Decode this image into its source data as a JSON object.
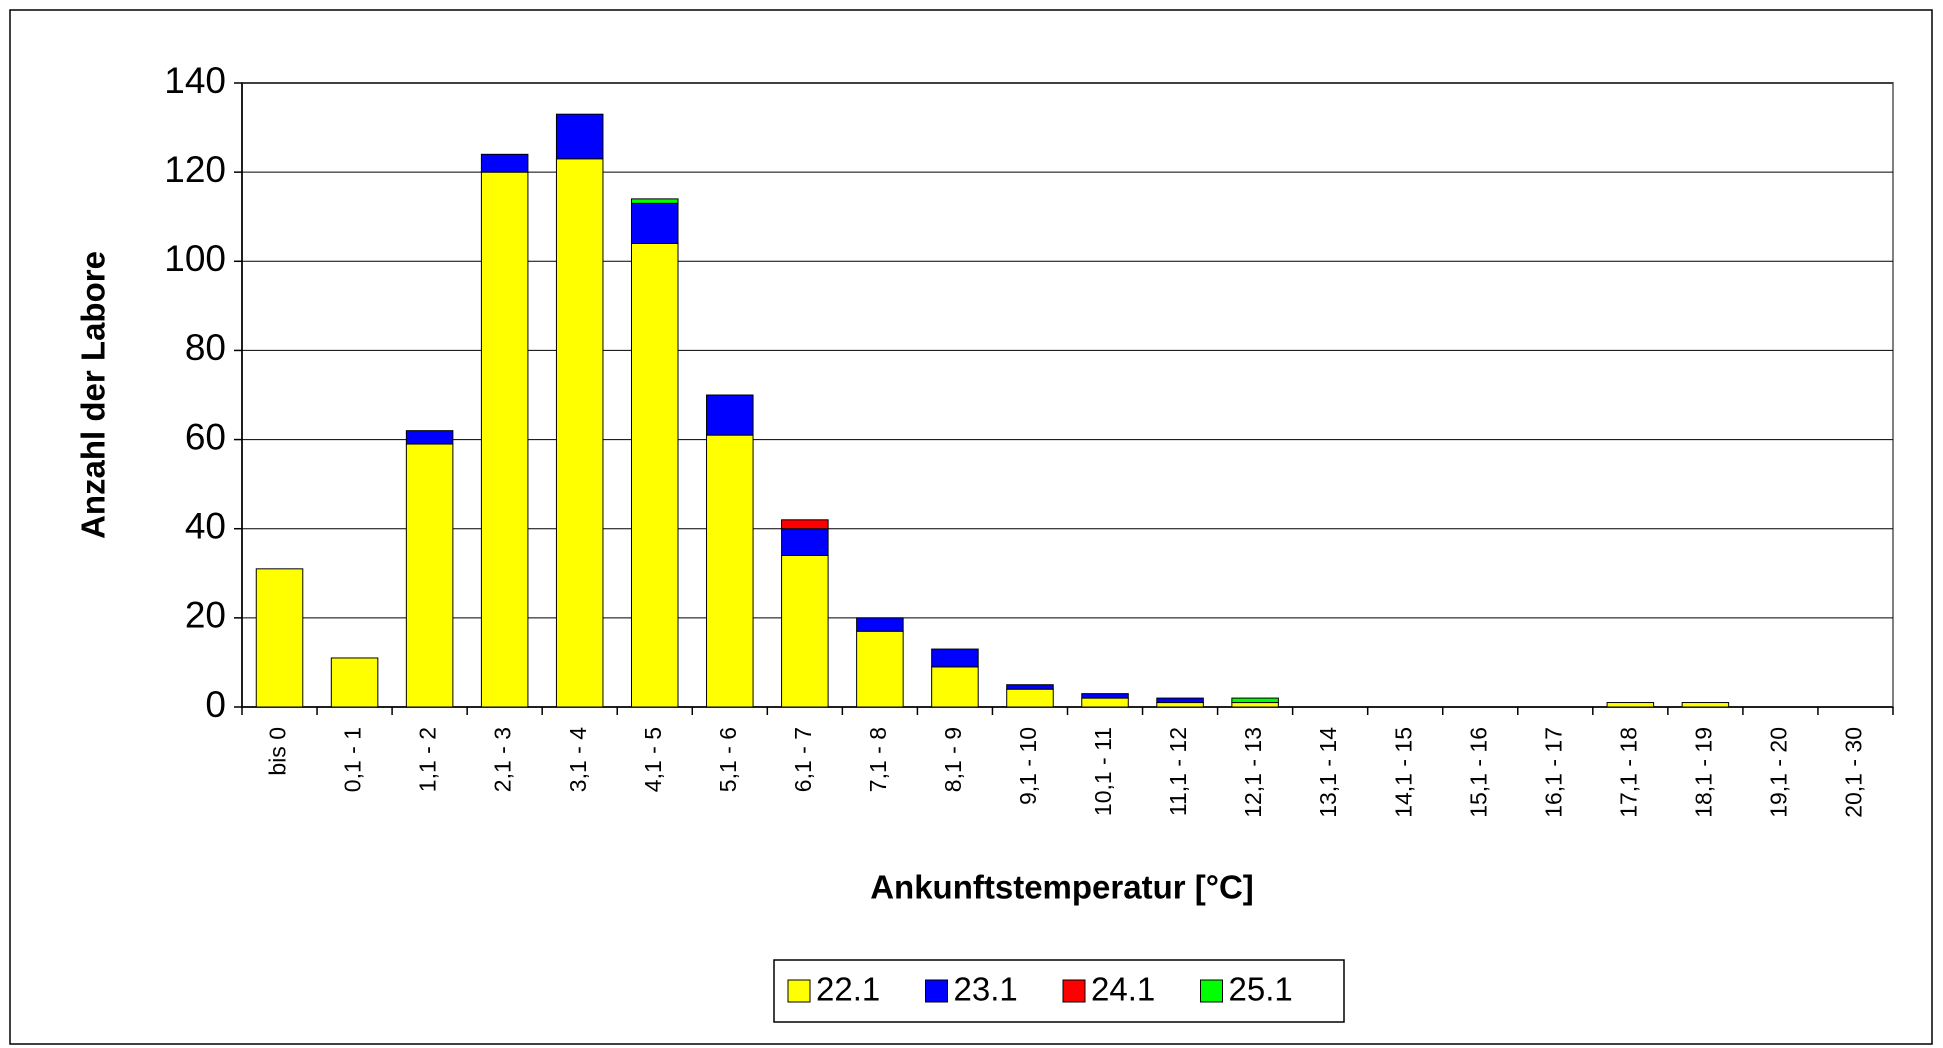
{
  "chart_data": {
    "type": "stacked_bar",
    "x_label": "Ankunftstemperatur [°C]",
    "y_label": "Anzahl der Labore",
    "categories": [
      "bis 0",
      "0,1 - 1",
      "1,1 - 2",
      "2,1 - 3",
      "3,1 - 4",
      "4,1 - 5",
      "5,1 - 6",
      "6,1 - 7",
      "7,1 - 8",
      "8,1 - 9",
      "9,1 - 10",
      "10,1 - 11",
      "11,1 - 12",
      "12,1 - 13",
      "13,1 - 14",
      "14,1 - 15",
      "15,1 - 16",
      "16,1 - 17",
      "17,1 - 18",
      "18,1 - 19",
      "19,1 - 20",
      "20,1 - 30"
    ],
    "series": [
      {
        "name": "22.1",
        "color": "#ffff00",
        "values": [
          31,
          11,
          59,
          120,
          123,
          104,
          61,
          34,
          17,
          9,
          4,
          2,
          1,
          1,
          0,
          0,
          0,
          0,
          1,
          1,
          0,
          0
        ]
      },
      {
        "name": "23.1",
        "color": "#0000ff",
        "values": [
          0,
          0,
          3,
          4,
          10,
          9,
          9,
          6,
          3,
          4,
          1,
          1,
          1,
          0,
          0,
          0,
          0,
          0,
          0,
          0,
          0,
          0
        ]
      },
      {
        "name": "24.1",
        "color": "#ff0000",
        "values": [
          0,
          0,
          0,
          0,
          0,
          0,
          0,
          2,
          0,
          0,
          0,
          0,
          0,
          0,
          0,
          0,
          0,
          0,
          0,
          0,
          0,
          0
        ]
      },
      {
        "name": "25.1",
        "color": "#00ff00",
        "values": [
          0,
          0,
          0,
          0,
          0,
          1,
          0,
          0,
          0,
          0,
          0,
          0,
          0,
          1,
          0,
          0,
          0,
          0,
          0,
          0,
          0,
          0
        ]
      }
    ],
    "ylim": [
      0,
      140
    ],
    "yticks": [
      0,
      20,
      40,
      60,
      80,
      100,
      120,
      140
    ],
    "grid": true,
    "legend": "bottom"
  }
}
